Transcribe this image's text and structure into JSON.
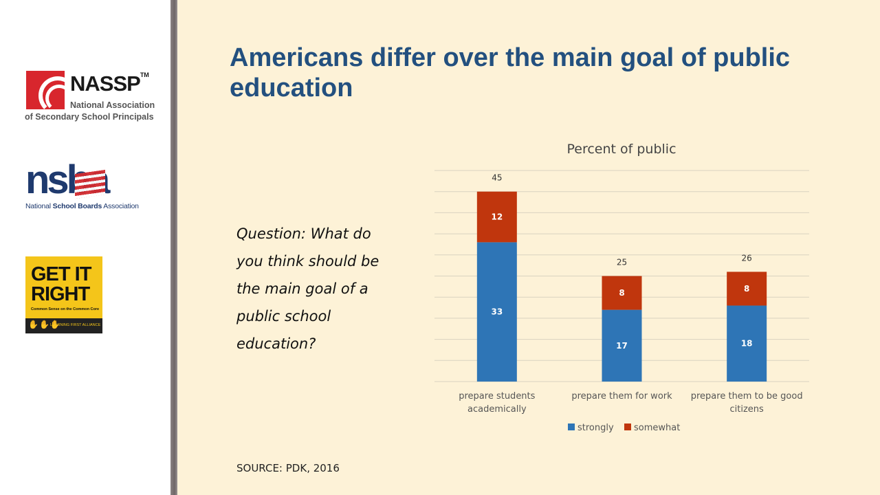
{
  "slide": {
    "title": "Americans differ over the main goal of public education",
    "question": "Question: What do you think should be the main goal of a public school education?",
    "source": "SOURCE: PDK, 2016"
  },
  "logos": {
    "nassp": {
      "name": "NASSP",
      "tm": "TM",
      "line1": "National Association",
      "line2": "of Secondary School Principals"
    },
    "nsba": {
      "word": "nsba",
      "sub_prefix": "National ",
      "sub_bold": "School Boards",
      "sub_suffix": " Association"
    },
    "getit": {
      "line1": "GET IT",
      "line2": "RIGHT",
      "tagline": "Common Sense on the Common Core",
      "alliance": "LEARNING FIRST ALLIANCE"
    }
  },
  "colors": {
    "strongly": "#2e75b6",
    "somewhat": "#c0360d",
    "title": "#23507f",
    "gridline": "#d9d2c0"
  },
  "chart_data": {
    "type": "bar",
    "stacked": true,
    "title": "Percent of public",
    "categories": [
      [
        "prepare students",
        "academically"
      ],
      [
        "prepare them for work"
      ],
      [
        "prepare them to be good",
        "citizens"
      ]
    ],
    "series": [
      {
        "name": "strongly",
        "values": [
          33,
          17,
          18
        ]
      },
      {
        "name": "somewhat",
        "values": [
          12,
          8,
          8
        ]
      }
    ],
    "totals": [
      45,
      25,
      26
    ],
    "ylim": [
      0,
      50
    ],
    "grid": true,
    "legend": "bottom"
  }
}
